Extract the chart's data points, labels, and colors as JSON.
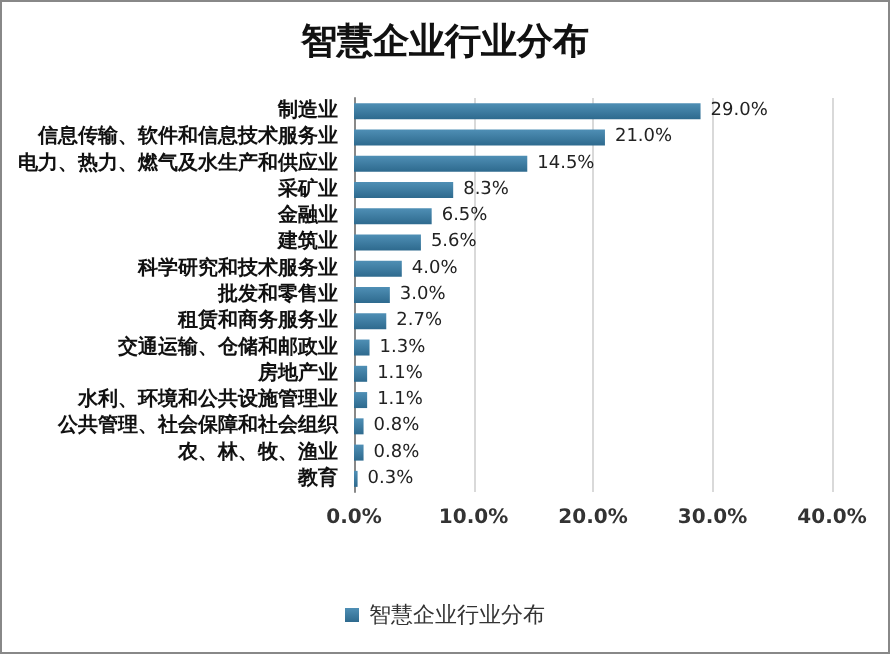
{
  "chart_data": {
    "type": "bar",
    "orientation": "horizontal",
    "title": "智慧企业行业分布",
    "categories": [
      "制造业",
      "信息传输、软件和信息技术服务业",
      "电力、热力、燃气及水生产和供应业",
      "采矿业",
      "金融业",
      "建筑业",
      "科学研究和技术服务业",
      "批发和零售业",
      "租赁和商务服务业",
      "交通运输、仓储和邮政业",
      "房地产业",
      "水利、环境和公共设施管理业",
      "公共管理、社会保障和社会组织",
      "农、林、牧、渔业",
      "教育"
    ],
    "series": [
      {
        "name": "智慧企业行业分布",
        "color": "#4f8fb5",
        "values": [
          29.0,
          21.0,
          14.5,
          8.3,
          6.5,
          5.6,
          4.0,
          3.0,
          2.7,
          1.3,
          1.1,
          1.1,
          0.8,
          0.8,
          0.3
        ],
        "value_labels": [
          "29.0%",
          "21.0%",
          "14.5%",
          "8.3%",
          "6.5%",
          "5.6%",
          "4.0%",
          "3.0%",
          "2.7%",
          "1.3%",
          "1.1%",
          "1.1%",
          "0.8%",
          "0.8%",
          "0.3%"
        ]
      }
    ],
    "xlim": [
      0,
      40
    ],
    "xticks": [
      {
        "value": 0,
        "label": "0.0%"
      },
      {
        "value": 10,
        "label": "10.0%"
      },
      {
        "value": 20,
        "label": "20.0%"
      },
      {
        "value": 30,
        "label": "30.0%"
      },
      {
        "value": 40,
        "label": "40.0%"
      }
    ],
    "grid": "x",
    "legend": "bottom"
  }
}
